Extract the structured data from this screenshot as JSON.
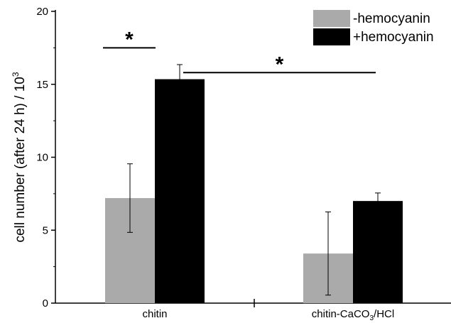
{
  "chart_data": {
    "type": "bar",
    "ylabel": "cell number (after 24 h) / 10",
    "ylabel_sup": "3",
    "ylim": [
      0,
      20
    ],
    "yticks": [
      "0",
      "5",
      "10",
      "15",
      "20"
    ],
    "categories": [
      {
        "label": "chitin",
        "sub": "",
        "suffix": ""
      },
      {
        "label": "chitin-CaCO",
        "sub": "3",
        "suffix": "/HCl"
      }
    ],
    "series": [
      {
        "name": "-hemocyanin",
        "color": "#aaaaaa",
        "values": [
          7.2,
          3.4
        ],
        "errors": [
          2.35,
          2.85
        ]
      },
      {
        "name": "+hemocyanin",
        "color": "#000000",
        "values": [
          15.35,
          7.0
        ],
        "errors": [
          1.0,
          0.55
        ]
      }
    ],
    "legend": "top-right",
    "annotations": [
      {
        "text": "*",
        "from": [
          0,
          0
        ],
        "to": [
          0,
          1
        ],
        "y": 17.5
      },
      {
        "text": "*",
        "from": [
          0,
          1
        ],
        "to": [
          1,
          1
        ],
        "y": 15.8
      }
    ]
  }
}
